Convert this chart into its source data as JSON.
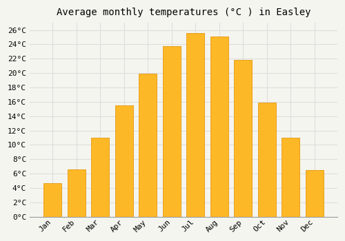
{
  "title": "Average monthly temperatures (°C ) in Easley",
  "months": [
    "Jan",
    "Feb",
    "Mar",
    "Apr",
    "May",
    "Jun",
    "Jul",
    "Aug",
    "Sep",
    "Oct",
    "Nov",
    "Dec"
  ],
  "values": [
    4.7,
    6.6,
    11.0,
    15.5,
    19.9,
    23.8,
    25.6,
    25.1,
    21.8,
    15.9,
    11.0,
    6.5
  ],
  "bar_color": "#FDB827",
  "bar_edge_color": "#E8A020",
  "background_color": "#F5F5F0",
  "plot_bg_color": "#F5F5F0",
  "grid_color": "#DDDDDD",
  "title_fontsize": 10,
  "tick_fontsize": 8,
  "ylim": [
    0,
    27
  ],
  "yticks": [
    0,
    2,
    4,
    6,
    8,
    10,
    12,
    14,
    16,
    18,
    20,
    22,
    24,
    26
  ]
}
